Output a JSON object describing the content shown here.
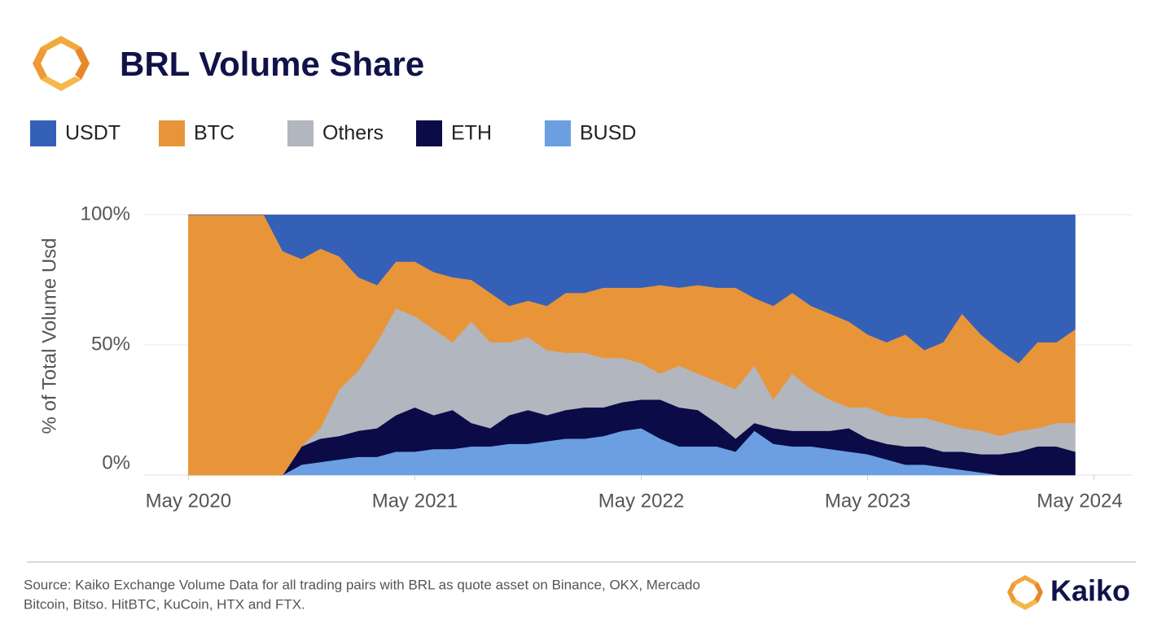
{
  "chart_data": {
    "type": "stacked-area",
    "title": "BRL Volume Share",
    "ylabel": "% of Total Volume Usd",
    "x": [
      "2020-05",
      "2020-06",
      "2020-07",
      "2020-08",
      "2020-09",
      "2020-10",
      "2020-11",
      "2020-12",
      "2021-01",
      "2021-02",
      "2021-03",
      "2021-04",
      "2021-05",
      "2021-06",
      "2021-07",
      "2021-08",
      "2021-09",
      "2021-10",
      "2021-11",
      "2021-12",
      "2022-01",
      "2022-02",
      "2022-03",
      "2022-04",
      "2022-05",
      "2022-06",
      "2022-07",
      "2022-08",
      "2022-09",
      "2022-10",
      "2022-11",
      "2022-12",
      "2023-01",
      "2023-02",
      "2023-03",
      "2023-04",
      "2023-05",
      "2023-06",
      "2023-07",
      "2023-08",
      "2023-09",
      "2023-10",
      "2023-11",
      "2023-12",
      "2024-01",
      "2024-02",
      "2024-03",
      "2024-04"
    ],
    "series": [
      {
        "name": "BUSD",
        "color": "#6b9fe2",
        "values": [
          0,
          0,
          0,
          0,
          0,
          0,
          4,
          5,
          6,
          7,
          7,
          9,
          9,
          10,
          10,
          11,
          11,
          12,
          12,
          13,
          14,
          14,
          15,
          17,
          18,
          14,
          11,
          11,
          11,
          9,
          17,
          12,
          11,
          11,
          10,
          9,
          8,
          6,
          4,
          4,
          3,
          2,
          1,
          0,
          0,
          0,
          0,
          0
        ]
      },
      {
        "name": "ETH",
        "color": "#0a0b47",
        "values": [
          0,
          0,
          0,
          0,
          0,
          0,
          7,
          9,
          9,
          10,
          11,
          14,
          17,
          13,
          15,
          9,
          7,
          11,
          13,
          10,
          11,
          12,
          11,
          11,
          11,
          15,
          15,
          14,
          9,
          5,
          3,
          6,
          6,
          6,
          7,
          9,
          6,
          6,
          7,
          7,
          6,
          7,
          7,
          8,
          9,
          11,
          11,
          9
        ]
      },
      {
        "name": "Others",
        "color": "#b2b6be",
        "values": [
          0,
          0,
          0,
          0,
          0,
          0,
          0,
          4,
          18,
          23,
          33,
          41,
          35,
          33,
          26,
          39,
          33,
          28,
          28,
          25,
          22,
          21,
          19,
          17,
          14,
          10,
          16,
          14,
          16,
          19,
          22,
          11,
          22,
          16,
          12,
          8,
          12,
          11,
          11,
          11,
          11,
          9,
          9,
          7,
          8,
          7,
          9,
          11
        ]
      },
      {
        "name": "BTC",
        "color": "#e8953a",
        "values": [
          100,
          100,
          100,
          100,
          100,
          86,
          72,
          69,
          51,
          36,
          22,
          18,
          21,
          22,
          25,
          16,
          19,
          14,
          14,
          17,
          23,
          23,
          27,
          27,
          29,
          34,
          30,
          34,
          36,
          39,
          26,
          36,
          31,
          32,
          33,
          33,
          28,
          28,
          32,
          26,
          31,
          44,
          37,
          33,
          26,
          33,
          31,
          36
        ]
      },
      {
        "name": "USDT",
        "color": "#3560b8",
        "values": [
          0,
          0,
          0,
          0,
          0,
          14,
          17,
          13,
          16,
          24,
          27,
          18,
          18,
          22,
          24,
          25,
          30,
          35,
          33,
          35,
          30,
          30,
          28,
          28,
          28,
          27,
          28,
          27,
          28,
          28,
          32,
          35,
          30,
          35,
          38,
          41,
          46,
          49,
          46,
          52,
          49,
          38,
          46,
          52,
          57,
          49,
          49,
          44
        ]
      }
    ],
    "legend_order": [
      "USDT",
      "BTC",
      "Others",
      "ETH",
      "BUSD"
    ],
    "xlim": [
      "2020-03",
      "2024-07"
    ],
    "xticks": [
      {
        "value": "2020-05",
        "label": "May 2020"
      },
      {
        "value": "2021-05",
        "label": "May 2021"
      },
      {
        "value": "2022-05",
        "label": "May 2022"
      },
      {
        "value": "2023-05",
        "label": "May 2023"
      },
      {
        "value": "2024-05",
        "label": "May 2024"
      }
    ],
    "ylim": [
      0,
      100
    ],
    "yticks": [
      {
        "value": 0,
        "label": "0%"
      },
      {
        "value": 50,
        "label": "50%"
      },
      {
        "value": 100,
        "label": "100%"
      }
    ],
    "grid": true
  },
  "footer": {
    "source_lines": [
      "Source: Kaiko Exchange Volume Data for all trading pairs with BRL as quote asset on Binance, OKX, Mercado",
      "Bitcoin, Bitso. HitBTC, KuCoin, HTX and FTX."
    ],
    "brand": "Kaiko"
  }
}
